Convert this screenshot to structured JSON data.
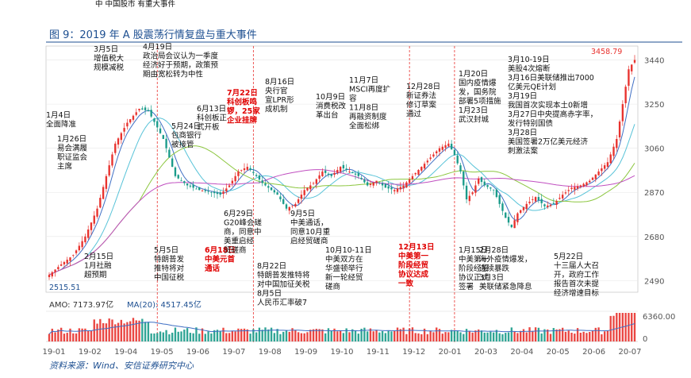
{
  "header_fragment": "中 中国股市 有重大事件",
  "figure_title": "图 9：2019 年 A 股震荡行情复盘与重大事件",
  "source": "资料来源：Wind、安信证券研究中心",
  "colors": {
    "up": "#e8322e",
    "down": "#1a9b8a",
    "ma_blue": "#3f6fc4",
    "ma_cyan": "#58c3d8",
    "ma_green": "#8cc63f",
    "ma_magenta": "#c04fc0",
    "title": "#1d4f91",
    "red_text": "#e00000",
    "dash": "#e8322e"
  },
  "chart_data": {
    "type": "candlestick",
    "title": "图 9：2019 年 A 股震荡行情复盘与重大事件",
    "ylim": [
      2440,
      3500
    ],
    "yticks": [
      2490,
      2680,
      2870,
      3060,
      3250,
      3440
    ],
    "xticks": [
      "19-01",
      "19-02",
      "19-04",
      "19-05",
      "19-06",
      "19-07",
      "19-08",
      "19-09",
      "19-10",
      "19-11",
      "19-12",
      "20-01",
      "20-03",
      "20-04",
      "20-05",
      "20-06",
      "20-07"
    ],
    "high_label": "3458.79",
    "low_label": "2515.51",
    "volume": {
      "amo_label": "AMO: 7173.97亿",
      "ma_label": "MA(20): 4517.45亿",
      "ymax_label": "6360.00",
      "ytick_zero": "0"
    },
    "price_path": [
      [
        0,
        2515
      ],
      [
        4,
        2560
      ],
      [
        8,
        2600
      ],
      [
        12,
        2680
      ],
      [
        16,
        2800
      ],
      [
        19,
        2940
      ],
      [
        22,
        3080
      ],
      [
        26,
        3170
      ],
      [
        30,
        3230
      ],
      [
        33,
        3220
      ],
      [
        36,
        3150
      ],
      [
        38,
        3100
      ],
      [
        42,
        2940
      ],
      [
        46,
        2900
      ],
      [
        50,
        2880
      ],
      [
        54,
        2870
      ],
      [
        57,
        2860
      ],
      [
        60,
        2900
      ],
      [
        63,
        2960
      ],
      [
        66,
        2980
      ],
      [
        69,
        2940
      ],
      [
        71,
        2910
      ],
      [
        73,
        2890
      ],
      [
        76,
        2860
      ],
      [
        79,
        2800
      ],
      [
        82,
        2820
      ],
      [
        85,
        2880
      ],
      [
        88,
        2910
      ],
      [
        91,
        2960
      ],
      [
        94,
        2940
      ],
      [
        97,
        2980
      ],
      [
        100,
        2960
      ],
      [
        103,
        2940
      ],
      [
        106,
        2900
      ],
      [
        109,
        2920
      ],
      [
        112,
        2890
      ],
      [
        115,
        2880
      ],
      [
        118,
        2900
      ],
      [
        121,
        2940
      ],
      [
        124,
        2980
      ],
      [
        127,
        3020
      ],
      [
        130,
        3060
      ],
      [
        133,
        3080
      ],
      [
        135,
        3030
      ],
      [
        137,
        2960
      ],
      [
        139,
        2840
      ],
      [
        141,
        2870
      ],
      [
        143,
        2930
      ],
      [
        145,
        2900
      ],
      [
        148,
        2880
      ],
      [
        150,
        2820
      ],
      [
        152,
        2760
      ],
      [
        154,
        2720
      ],
      [
        156,
        2780
      ],
      [
        159,
        2820
      ],
      [
        162,
        2850
      ],
      [
        165,
        2810
      ],
      [
        168,
        2820
      ],
      [
        171,
        2860
      ],
      [
        174,
        2890
      ],
      [
        177,
        2900
      ],
      [
        180,
        2920
      ],
      [
        183,
        2960
      ],
      [
        186,
        3000
      ],
      [
        189,
        3100
      ],
      [
        191,
        3250
      ],
      [
        193,
        3400
      ],
      [
        195,
        3440
      ]
    ],
    "moving_averages": [
      {
        "name": "MA-blue",
        "color": "#3f6fc4",
        "smooth": 4
      },
      {
        "name": "MA-cyan",
        "color": "#58c3d8",
        "smooth": 12
      },
      {
        "name": "MA-green",
        "color": "#8cc63f",
        "smooth": 30
      },
      {
        "name": "MA-magenta",
        "color": "#c04fc0",
        "smooth": 70
      }
    ],
    "event_dashes": [
      {
        "label": "5/5",
        "index": 36
      },
      {
        "label": "8/5",
        "index": 68
      },
      {
        "label": "12/13",
        "index": 120
      },
      {
        "label": "1/23",
        "index": 135
      }
    ],
    "annotations": [
      {
        "name": "ann-jan4",
        "lines": [
          "1月4日",
          "全面降准"
        ],
        "red": false
      },
      {
        "name": "ann-jan26",
        "lines": [
          "1月26日",
          "易会满履",
          "职证监会",
          "主席"
        ],
        "red": false
      },
      {
        "name": "ann-mar5",
        "lines": [
          "3月5日",
          "增值税大",
          "规模减税"
        ],
        "red": false
      },
      {
        "name": "ann-apr19",
        "lines": [
          "4月19日",
          "政治局会议认为一季度",
          "经济好于预期，政策预",
          "期由宽松转为中性"
        ],
        "red": false
      },
      {
        "name": "ann-feb15",
        "lines": [
          "2月15日",
          "1月社融",
          "超预期"
        ],
        "red": false
      },
      {
        "name": "ann-may5",
        "lines": [
          "5月5日",
          "特朗普发",
          "推特将对",
          "中国征税"
        ],
        "red": false
      },
      {
        "name": "ann-may24",
        "lines": [
          "5月24日",
          "包商银行",
          "被接管"
        ],
        "red": false
      },
      {
        "name": "ann-jun13",
        "lines": [
          "6月13日",
          "科创板正",
          "式开板"
        ],
        "red": false
      },
      {
        "name": "ann-jul22",
        "lines": [
          "7月22日",
          "科创板鸣",
          "锣，25家",
          "企业挂牌"
        ],
        "red": true
      },
      {
        "name": "ann-jun18",
        "lines": [
          "6月18日",
          "中美元首",
          "通话"
        ],
        "red": true
      },
      {
        "name": "ann-jun29",
        "lines": [
          "6月29日",
          "G20峰会磋",
          "商，同意中",
          "美重启经",
          "贸磋商"
        ],
        "red": false
      },
      {
        "name": "ann-aug16",
        "lines": [
          "8月16日",
          "央行官",
          "宣LPR形",
          "成机制"
        ],
        "red": false
      },
      {
        "name": "ann-aug22",
        "lines": [
          "8月22日",
          "特朗普发推特将",
          "对中国加征关税",
          "8月5日",
          "人民币汇率破7"
        ],
        "red": false
      },
      {
        "name": "ann-sep5",
        "lines": [
          "9月5日",
          "中美通话，",
          "同意10月重",
          "启经贸磋商"
        ],
        "red": false
      },
      {
        "name": "ann-oct9",
        "lines": [
          "10月9日",
          "消费税改",
          "革出台"
        ],
        "red": false
      },
      {
        "name": "ann-nov7",
        "lines": [
          "11月7日",
          "MSCI再度扩",
          "容",
          "11月8日",
          "再融资制度",
          "全面松绑"
        ],
        "red": false
      },
      {
        "name": "ann-oct10",
        "lines": [
          "10月10-11日",
          "中美双方在",
          "华盛顿举行",
          "新一轮经贸",
          "磋商"
        ],
        "red": false
      },
      {
        "name": "ann-dec28",
        "lines": [
          "12月28日",
          "新证券法",
          "修订草案",
          "通过"
        ],
        "red": false
      },
      {
        "name": "ann-dec13",
        "lines": [
          "12月13日",
          "中美第一",
          "阶段经贸",
          "协议达成",
          "一致"
        ],
        "red": true
      },
      {
        "name": "ann-jan20",
        "lines": [
          "1月20日",
          "国内疫情爆",
          "发，国务院",
          "部署5项措施",
          "1月23日",
          "武汉封城"
        ],
        "red": false
      },
      {
        "name": "ann-jan15",
        "lines": [
          "1月15日",
          "中美第一",
          "阶段经贸",
          "协议正式",
          "签署"
        ],
        "red": false
      },
      {
        "name": "ann-mar10",
        "lines": [
          "3月10-19日",
          "美股4次熔断",
          "3月16日美联储推出7000",
          "亿美元QE计划",
          "3月19日",
          "我国首次实现本土0新增",
          "3月27日中央提高赤字率，",
          "发行特别国债",
          "3月28日",
          "美国签署2万亿美元经济",
          "刺激法案"
        ],
        "red": false
      },
      {
        "name": "ann-feb28",
        "lines": [
          "2月28日",
          "海外疫情爆发，",
          "连续暴跌",
          "3月3日",
          "美联储紧急降息"
        ],
        "red": false
      },
      {
        "name": "ann-may22",
        "lines": [
          "5月22日",
          "十三届人大召",
          "开，政府工作",
          "报告首次未提",
          "经济增速目标"
        ],
        "red": false
      }
    ]
  }
}
